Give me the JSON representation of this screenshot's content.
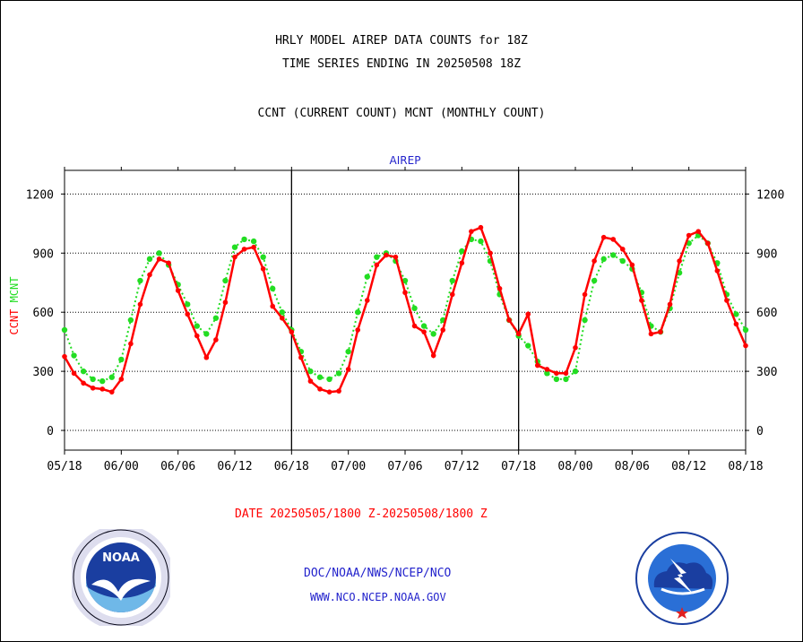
{
  "header": {
    "line1": "HRLY MODEL AIREP DATA COUNTS for 18Z",
    "line2": "TIME SERIES ENDING IN 20250508 18Z",
    "line3": "CCNT (CURRENT COUNT) MCNT (MONTHLY COUNT)"
  },
  "colors": {
    "ccnt": "#ff0000",
    "mcnt": "#22dd22",
    "text_blue": "#2222cc",
    "frame": "#000000"
  },
  "footer": {
    "date_range": "DATE 20250505/1800 Z-20250508/1800 Z",
    "org": "DOC/NOAA/NWS/NCEP/NCO",
    "url": "WWW.NCO.NCEP.NOAA.GOV"
  },
  "logos": {
    "noaa": {
      "icon": "noaa-seal-icon",
      "text": "NOAA"
    },
    "nws": {
      "icon": "nws-seal-icon"
    }
  },
  "chart_data": {
    "type": "line",
    "title": "AIREP",
    "ylabel_parts": [
      "CCNT",
      "MCNT"
    ],
    "ylim": [
      -100,
      1320
    ],
    "yticks": [
      0,
      300,
      600,
      900,
      1200
    ],
    "xticks": [
      "05/18",
      "06/00",
      "06/06",
      "06/12",
      "06/18",
      "07/00",
      "07/06",
      "07/12",
      "07/18",
      "08/00",
      "08/06",
      "08/12",
      "08/18"
    ],
    "grid": true,
    "x_hours_range": [
      0,
      72
    ],
    "series": [
      {
        "name": "CCNT",
        "color": "#ff0000",
        "x": [
          0,
          1,
          2,
          3,
          4,
          5,
          6,
          7,
          8,
          9,
          10,
          11,
          12,
          13,
          14,
          15,
          16,
          17,
          18,
          19,
          20,
          21,
          22,
          23,
          24,
          25,
          26,
          27,
          28,
          29,
          30,
          31,
          32,
          33,
          34,
          35,
          36,
          37,
          38,
          39,
          40,
          41,
          42,
          43,
          44,
          45,
          46,
          47,
          48,
          49,
          50,
          51,
          52,
          53,
          54,
          55,
          56,
          57,
          58,
          59,
          60,
          61,
          62,
          63,
          64,
          65,
          66,
          67,
          68,
          69,
          70,
          71,
          72
        ],
        "values": [
          375,
          290,
          240,
          215,
          210,
          195,
          260,
          440,
          640,
          790,
          870,
          850,
          710,
          590,
          480,
          370,
          460,
          650,
          880,
          920,
          930,
          820,
          630,
          570,
          500,
          370,
          250,
          210,
          195,
          200,
          310,
          510,
          660,
          840,
          890,
          880,
          700,
          530,
          500,
          380,
          510,
          690,
          850,
          1010,
          1030,
          900,
          720,
          560,
          490,
          590,
          330,
          310,
          290,
          290,
          420,
          690,
          860,
          980,
          970,
          920,
          840,
          660,
          490,
          500,
          640,
          860,
          990,
          1010,
          950,
          810,
          660,
          540,
          430
        ]
      },
      {
        "name": "MCNT",
        "color": "#22dd22",
        "x": [
          0,
          1,
          2,
          3,
          4,
          5,
          6,
          7,
          8,
          9,
          10,
          11,
          12,
          13,
          14,
          15,
          16,
          17,
          18,
          19,
          20,
          21,
          22,
          23,
          24,
          25,
          26,
          27,
          28,
          29,
          30,
          31,
          32,
          33,
          34,
          35,
          36,
          37,
          38,
          39,
          40,
          41,
          42,
          43,
          44,
          45,
          46,
          47,
          48,
          49,
          50,
          51,
          52,
          53,
          54,
          55,
          56,
          57,
          58,
          59,
          60,
          61,
          62,
          63,
          64,
          65,
          66,
          67,
          68,
          69,
          70,
          71,
          72
        ],
        "values": [
          510,
          380,
          300,
          260,
          250,
          270,
          360,
          560,
          760,
          870,
          900,
          840,
          740,
          640,
          530,
          490,
          570,
          760,
          930,
          970,
          960,
          880,
          720,
          600,
          510,
          400,
          300,
          270,
          260,
          290,
          400,
          600,
          780,
          880,
          900,
          860,
          760,
          620,
          530,
          490,
          560,
          760,
          910,
          970,
          960,
          860,
          690,
          560,
          480,
          430,
          350,
          290,
          260,
          260,
          300,
          560,
          760,
          870,
          890,
          860,
          820,
          700,
          530,
          500,
          620,
          800,
          950,
          990,
          950,
          850,
          690,
          590,
          510
        ]
      }
    ]
  }
}
